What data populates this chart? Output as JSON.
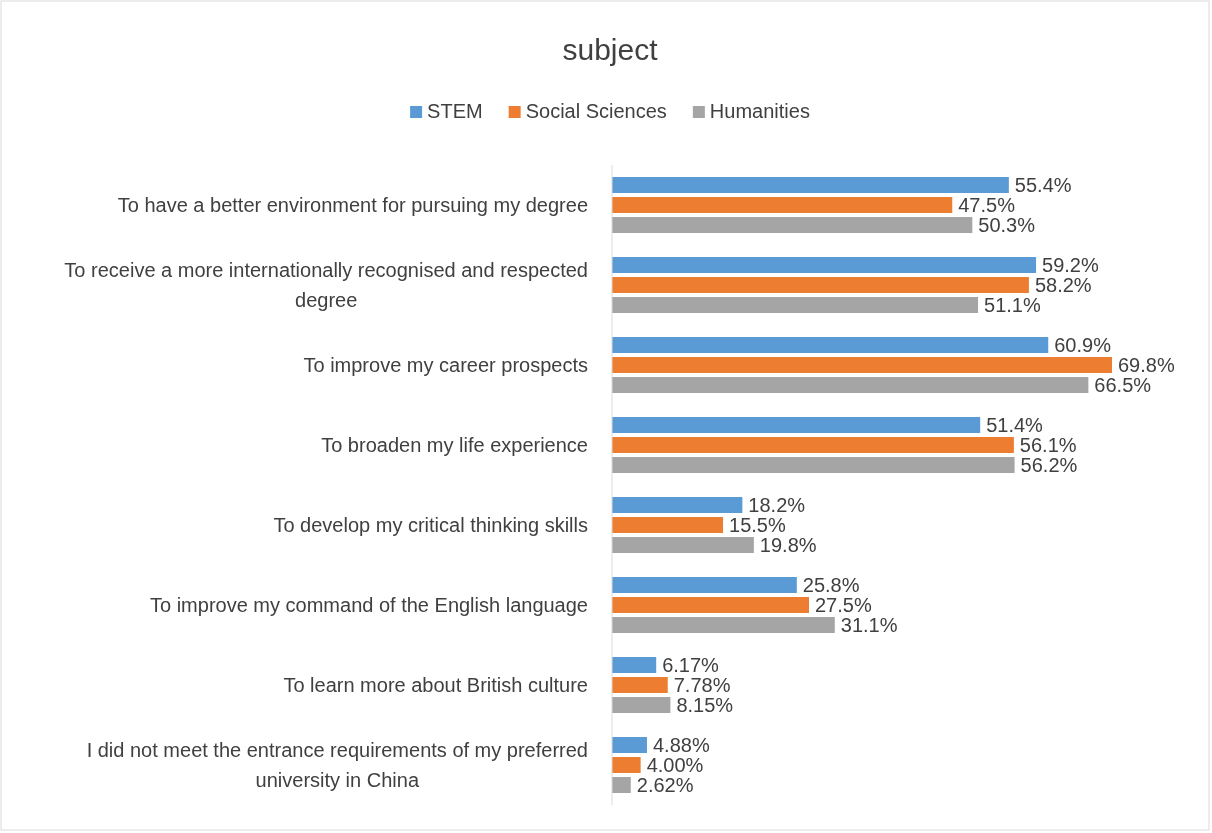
{
  "chart_data": {
    "type": "bar",
    "orientation": "horizontal",
    "title": "subject",
    "legend": "top",
    "categories": [
      "To have a better environment for pursuing my degree",
      "To receive a more internationally recognised and respected degree",
      "To improve my career prospects",
      "To broaden my life experience",
      "To develop my critical thinking skills",
      "To improve my command of the English language",
      "To learn more about British culture",
      "I did not meet the entrance requirements of my preferred university in China"
    ],
    "series": [
      {
        "name": "STEM",
        "color": "#5b9bd5",
        "values": [
          55.4,
          59.2,
          60.9,
          51.4,
          18.2,
          25.8,
          6.17,
          4.88
        ],
        "value_labels": [
          "55.4%",
          "59.2%",
          "60.9%",
          "51.4%",
          "18.2%",
          "25.8%",
          "6.17%",
          "4.88%"
        ]
      },
      {
        "name": "Social Sciences",
        "color": "#ed7d31",
        "values": [
          47.5,
          58.2,
          69.8,
          56.1,
          15.5,
          27.5,
          7.78,
          4.0
        ],
        "value_labels": [
          "47.5%",
          "58.2%",
          "69.8%",
          "56.1%",
          "15.5%",
          "27.5%",
          "7.78%",
          "4.00%"
        ]
      },
      {
        "name": "Humanities",
        "color": "#a5a5a5",
        "values": [
          50.3,
          51.1,
          66.5,
          56.2,
          19.8,
          31.1,
          8.15,
          2.62
        ],
        "value_labels": [
          "50.3%",
          "51.1%",
          "66.5%",
          "56.2%",
          "19.8%",
          "31.1%",
          "8.15%",
          "2.62%"
        ]
      }
    ]
  }
}
